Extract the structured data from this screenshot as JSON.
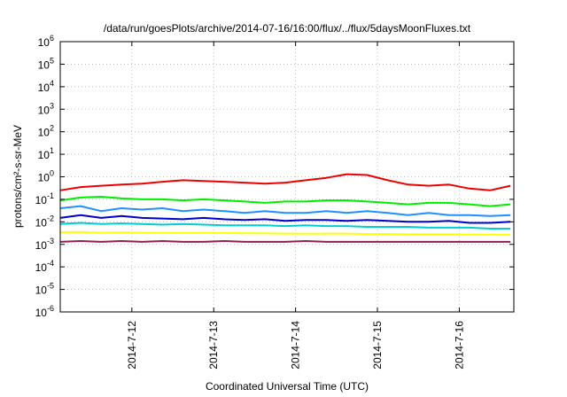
{
  "chart_data": {
    "type": "line",
    "title": "/data/run/goesPlots/archive/2014-07-16/16:00/flux/../flux/5daysMoonFluxes.txt",
    "xlabel": "Coordinated Universal Time (UTC)",
    "ylabel": "protons/cm²-s-sr-MeV",
    "yscale": "log",
    "ylim": [
      1e-06,
      1000000.0
    ],
    "yticks": [
      {
        "value": 1e-06,
        "base": "10",
        "exp": "-6"
      },
      {
        "value": 1e-05,
        "base": "10",
        "exp": "-5"
      },
      {
        "value": 0.0001,
        "base": "10",
        "exp": "-4"
      },
      {
        "value": 0.001,
        "base": "10",
        "exp": "-3"
      },
      {
        "value": 0.01,
        "base": "10",
        "exp": "-2"
      },
      {
        "value": 0.1,
        "base": "10",
        "exp": "-1"
      },
      {
        "value": 1,
        "base": "10",
        "exp": "0"
      },
      {
        "value": 10,
        "base": "10",
        "exp": "1"
      },
      {
        "value": 100,
        "base": "10",
        "exp": "2"
      },
      {
        "value": 1000,
        "base": "10",
        "exp": "3"
      },
      {
        "value": 10000,
        "base": "10",
        "exp": "4"
      },
      {
        "value": 100000,
        "base": "10",
        "exp": "5"
      },
      {
        "value": 1000000,
        "base": "10",
        "exp": "6"
      }
    ],
    "xlim": [
      "2014-07-11 03:00",
      "2014-07-16 16:00"
    ],
    "xticks": [
      {
        "value": "2014-07-12 00:00",
        "label": "2014-7-12"
      },
      {
        "value": "2014-07-13 00:00",
        "label": "2014-7-13"
      },
      {
        "value": "2014-07-14 00:00",
        "label": "2014-7-14"
      },
      {
        "value": "2014-07-15 00:00",
        "label": "2014-7-15"
      },
      {
        "value": "2014-07-16 00:00",
        "label": "2014-7-16"
      }
    ],
    "grid": true,
    "x": [
      "2014-07-11 03:00",
      "2014-07-11 09:00",
      "2014-07-11 15:00",
      "2014-07-11 21:00",
      "2014-07-12 03:00",
      "2014-07-12 09:00",
      "2014-07-12 15:00",
      "2014-07-12 21:00",
      "2014-07-13 03:00",
      "2014-07-13 09:00",
      "2014-07-13 15:00",
      "2014-07-13 21:00",
      "2014-07-14 03:00",
      "2014-07-14 09:00",
      "2014-07-14 15:00",
      "2014-07-14 21:00",
      "2014-07-15 03:00",
      "2014-07-15 09:00",
      "2014-07-15 15:00",
      "2014-07-15 21:00",
      "2014-07-16 03:00",
      "2014-07-16 09:00",
      "2014-07-16 15:00"
    ],
    "series": [
      {
        "color": "#ee0000",
        "values": [
          0.25,
          0.35,
          0.4,
          0.45,
          0.5,
          0.6,
          0.7,
          0.65,
          0.6,
          0.55,
          0.5,
          0.55,
          0.7,
          0.9,
          1.3,
          1.2,
          0.7,
          0.45,
          0.4,
          0.45,
          0.3,
          0.25,
          0.4
        ]
      },
      {
        "color": "#00ee00",
        "values": [
          0.09,
          0.12,
          0.13,
          0.11,
          0.1,
          0.1,
          0.09,
          0.1,
          0.09,
          0.08,
          0.07,
          0.08,
          0.08,
          0.09,
          0.09,
          0.08,
          0.07,
          0.06,
          0.07,
          0.07,
          0.06,
          0.05,
          0.06
        ]
      },
      {
        "color": "#1e90ff",
        "values": [
          0.04,
          0.05,
          0.03,
          0.04,
          0.035,
          0.04,
          0.03,
          0.035,
          0.03,
          0.025,
          0.03,
          0.025,
          0.025,
          0.03,
          0.025,
          0.03,
          0.025,
          0.02,
          0.025,
          0.02,
          0.02,
          0.018,
          0.02
        ]
      },
      {
        "color": "#0000cc",
        "values": [
          0.015,
          0.02,
          0.015,
          0.018,
          0.015,
          0.014,
          0.013,
          0.015,
          0.013,
          0.012,
          0.013,
          0.011,
          0.012,
          0.012,
          0.011,
          0.012,
          0.011,
          0.01,
          0.01,
          0.011,
          0.009,
          0.009,
          0.01
        ]
      },
      {
        "color": "#00ced1",
        "values": [
          0.008,
          0.009,
          0.008,
          0.0085,
          0.008,
          0.0075,
          0.008,
          0.0075,
          0.007,
          0.007,
          0.007,
          0.0065,
          0.007,
          0.0065,
          0.0065,
          0.006,
          0.006,
          0.006,
          0.0055,
          0.0055,
          0.0055,
          0.005,
          0.005
        ]
      },
      {
        "color": "#ffff00",
        "values": [
          0.0035,
          0.0035,
          0.0033,
          0.0034,
          0.0033,
          0.0033,
          0.0032,
          0.0033,
          0.0032,
          0.0031,
          0.0031,
          0.003,
          0.003,
          0.003,
          0.003,
          0.0029,
          0.0029,
          0.0028,
          0.0028,
          0.0028,
          0.0027,
          0.0027,
          0.0027
        ]
      },
      {
        "color": "#8b2252",
        "values": [
          0.0013,
          0.0014,
          0.0013,
          0.0014,
          0.0013,
          0.0014,
          0.0013,
          0.0013,
          0.0014,
          0.0013,
          0.0013,
          0.0013,
          0.0014,
          0.0013,
          0.0013,
          0.0013,
          0.0013,
          0.0013,
          0.0013,
          0.0013,
          0.0013,
          0.0013,
          0.0013
        ]
      }
    ]
  }
}
